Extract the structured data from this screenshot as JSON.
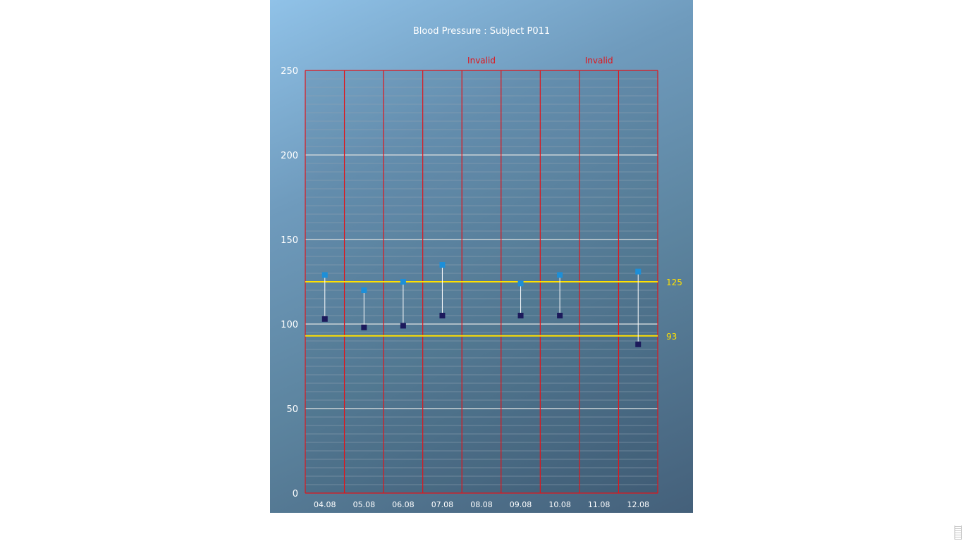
{
  "chart_data": {
    "type": "range-scatter",
    "title": "Blood Pressure : Subject P011",
    "xlabel": "",
    "ylabel": "",
    "ylim": [
      0,
      250
    ],
    "y_ticks": [
      0,
      50,
      100,
      150,
      200,
      250
    ],
    "grid": true,
    "categories": [
      "04.08",
      "05.08",
      "06.08",
      "07.08",
      "08.08",
      "09.08",
      "10.08",
      "11.08",
      "12.08"
    ],
    "series": [
      {
        "values": [
          129,
          120,
          125,
          135,
          null,
          124,
          129,
          null,
          131
        ]
      },
      {
        "values": [
          103,
          98,
          99,
          105,
          null,
          105,
          105,
          null,
          88
        ]
      }
    ],
    "reference_lines": [
      {
        "label": "125",
        "value": 125
      },
      {
        "label": "93",
        "value": 93
      }
    ],
    "invalid_label": "Invalid",
    "invalid_categories": [
      "08.08",
      "11.08"
    ],
    "colors": {
      "systolic_marker": "#1d8fd8",
      "diastolic_marker": "#1c1a5c",
      "connector": "#ffffff",
      "category_border": "#e0151b",
      "reference_line": "#ffe000",
      "major_grid": "#c9d2d6",
      "minor_grid": "#8fa3b2"
    }
  }
}
